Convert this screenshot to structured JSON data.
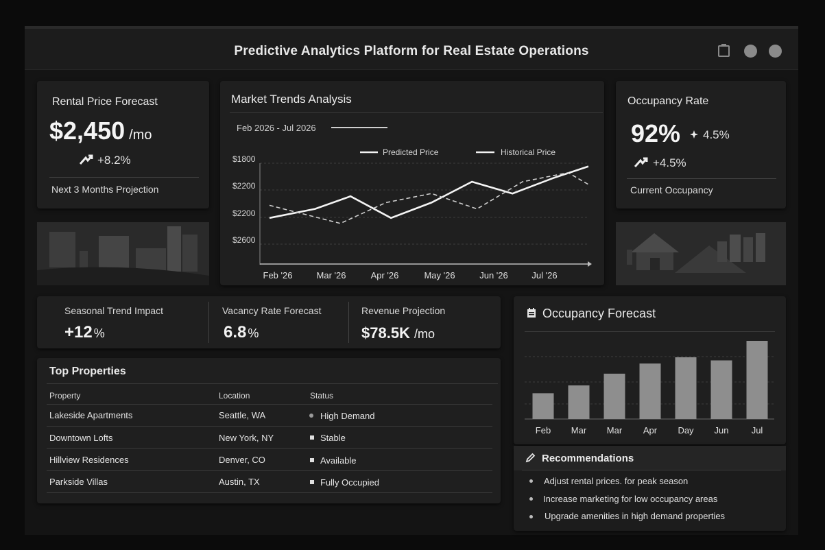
{
  "app": {
    "title": "Predictive Analytics Platform for Real Estate Operations"
  },
  "rental": {
    "title": "Rental Price Forecast",
    "price": "$2,450",
    "unit": "/mo",
    "change": "+8.2%",
    "footer": "Next 3 Months Projection"
  },
  "trends": {
    "title": "Market Trends Analysis",
    "range": "Feb 2026 - Jul 2026",
    "legend_predicted": "Predicted Price",
    "legend_historical": "Historical Price"
  },
  "occupancy": {
    "title": "Occupancy Rate",
    "value": "92%",
    "side_change": "4.5%",
    "change": "+4.5%",
    "footer": "Current Occupancy"
  },
  "stats": {
    "seasonal_label": "Seasonal Trend Impact",
    "seasonal_value": "+12",
    "seasonal_unit": "%",
    "vacancy_label": "Vacancy Rate Forecast",
    "vacancy_value": "6.8",
    "vacancy_unit": "%",
    "revenue_label": "Revenue Projection",
    "revenue_value": "$78.5K",
    "revenue_unit": "/mo"
  },
  "table": {
    "title": "Top Properties",
    "headers": [
      "Property",
      "Location",
      "Status"
    ],
    "rows": [
      [
        "Lakeside Apartments",
        "Seattle, WA",
        "High Demand"
      ],
      [
        "Downtown Lofts",
        "New York, NY",
        "Stable"
      ],
      [
        "Hillview Residences",
        "Denver, CO",
        "Available"
      ],
      [
        "Parkside Villas",
        "Austin, TX",
        "Fully Occupied"
      ]
    ]
  },
  "forecast": {
    "title": "Occupancy Forecast"
  },
  "recs": {
    "title": "Recommendations",
    "items": [
      "Adjust rental prices. for peak season",
      "Increase marketing for low occupancy areas",
      "Upgrade amenities in high demand properties"
    ]
  },
  "chart_data": [
    {
      "type": "line",
      "title": "Market Trends Analysis",
      "x_labels": [
        "Feb '26",
        "Mar '26",
        "Apr '26",
        "May '26",
        "Jun '26",
        "Jul '26"
      ],
      "y_tick_labels": [
        "$1800",
        "$2200",
        "$2200",
        "$2600"
      ],
      "grid": true,
      "legend": "top-right",
      "series": [
        {
          "name": "Predicted Price",
          "style": "solid",
          "x": [
            0,
            0.9,
            1.6,
            2.4,
            3.2,
            4.0,
            4.8,
            5.6,
            6.3
          ],
          "y": [
            0.62,
            0.52,
            0.38,
            0.62,
            0.45,
            0.22,
            0.35,
            0.18,
            0.05
          ]
        },
        {
          "name": "Historical Price",
          "style": "dashed",
          "x": [
            0,
            1.4,
            2.3,
            3.2,
            4.1,
            5.0,
            5.9,
            6.3
          ],
          "y": [
            0.48,
            0.68,
            0.45,
            0.35,
            0.52,
            0.22,
            0.12,
            0.25
          ]
        }
      ]
    },
    {
      "type": "bar",
      "title": "Occupancy Forecast",
      "categories": [
        "Feb",
        "Mar",
        "Mar",
        "Apr",
        "Day",
        "Jun",
        "Jul"
      ],
      "values": [
        33,
        43,
        58,
        71,
        79,
        75,
        100
      ],
      "ylim": [
        0,
        100
      ],
      "grid": true
    }
  ],
  "colors": {
    "background": "#0b0b0b",
    "card": "#1f1f1f",
    "accent": "#f5f5f5"
  }
}
